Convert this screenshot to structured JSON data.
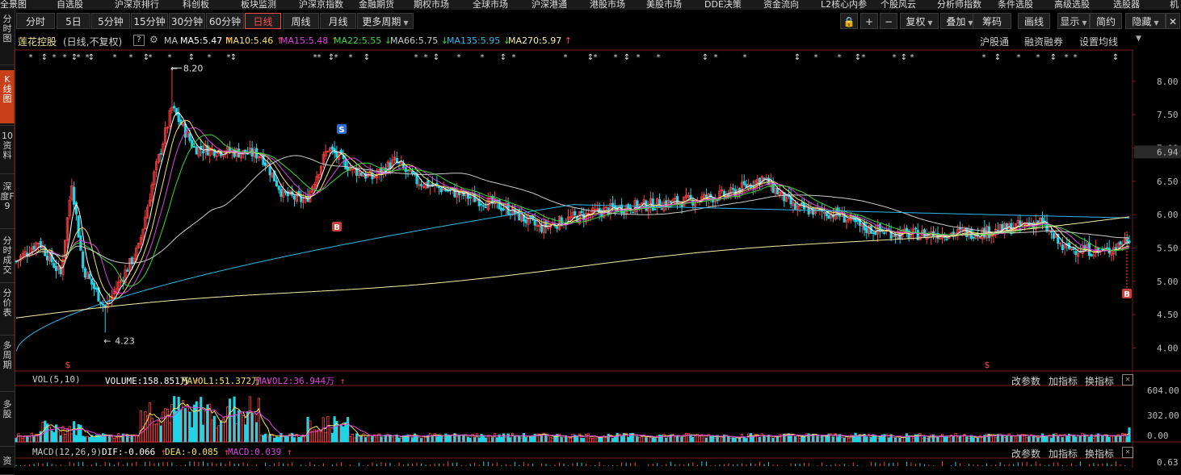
{
  "top_menu": [
    "全景图",
    "自选股",
    "沪深京排行",
    "科创板",
    "板块监测",
    "沪深京指数",
    "金融期货",
    "期权市场",
    "全球市场",
    "沪深港通",
    "港股市场",
    "美股市场",
    "DDE决策",
    "资金流向",
    "L2核心内参",
    "个股风云",
    "分析师指数",
    "条件选股",
    "高级选股",
    "选股器",
    "机"
  ],
  "left_tabs": [
    "分时图",
    "K线图",
    "10资料",
    "深度F9",
    "分时成交",
    "分价表",
    "多周期",
    "多股",
    "资"
  ],
  "toolbar": {
    "periods": [
      "分时",
      "5日",
      "5分钟",
      "15分钟",
      "30分钟",
      "60分钟",
      "日线",
      "周线",
      "月线",
      "更多周期"
    ],
    "active_period": "日线",
    "tools": [
      "复权",
      "叠加",
      "筹码",
      "画线",
      "显示",
      "简约",
      "隐藏"
    ]
  },
  "stock": {
    "name": "莲花控股",
    "mode": "(日线,不复权)"
  },
  "ma": {
    "label": "MA",
    "items": [
      {
        "name": "MA5",
        "value": "5.47",
        "dir": "↑",
        "color": "#ffffff"
      },
      {
        "name": "MA10",
        "value": "5.46",
        "dir": "↑",
        "color": "#f5e663"
      },
      {
        "name": "MA15",
        "value": "5.48",
        "dir": "↑",
        "color": "#e040e0"
      },
      {
        "name": "MA22",
        "value": "5.55",
        "dir": "↓",
        "color": "#39d939"
      },
      {
        "name": "MA66",
        "value": "5.75",
        "dir": "↓",
        "color": "#cccccc"
      },
      {
        "name": "MA135",
        "value": "5.95",
        "dir": "↓",
        "color": "#2fb8e8"
      },
      {
        "name": "MA270",
        "value": "5.97",
        "dir": "↑",
        "color": "#f8f0a8"
      }
    ]
  },
  "right_links": [
    "沪股通",
    "融资融券",
    "设置均线"
  ],
  "price_axis": {
    "ticks": [
      "8.00",
      "7.50",
      "7.00",
      "6.50",
      "6.00",
      "5.50",
      "5.00",
      "4.50",
      "4.00"
    ],
    "current": "6.94"
  },
  "annotations": {
    "high": "8.20",
    "low": "4.23",
    "sell_badge": "S",
    "buy_badge": "B",
    "dollar": "$"
  },
  "volume_panel": {
    "label": "VOL(5,10)",
    "items": [
      {
        "name": "VOLUME",
        "value": "158.851万",
        "color": "#ffffff"
      },
      {
        "name": "MAVOL1",
        "value": "51.372万",
        "color": "#f5e663"
      },
      {
        "name": "MAVOL2",
        "value": "36.944万",
        "color": "#e040e0"
      }
    ],
    "arrow": "↑",
    "axis": [
      "604.00",
      "302.00",
      "0.00"
    ]
  },
  "macd_panel": {
    "label": "MACD(12,26,9)",
    "items": [
      {
        "name": "DIF",
        "value": "-0.066",
        "color": "#ffffff"
      },
      {
        "name": "DEA",
        "value": "-0.085",
        "color": "#f5e663"
      },
      {
        "name": "MACD",
        "value": "0.039",
        "color": "#e040e0"
      }
    ],
    "arrow": "↑",
    "axis": [
      "0.63"
    ]
  },
  "panel_buttons": [
    "改参数",
    "加指标",
    "换指标"
  ],
  "chart_data": {
    "type": "candlestick",
    "y_range": [
      3.8,
      8.3
    ],
    "ma_values_last": {
      "MA5": 5.47,
      "MA10": 5.46,
      "MA15": 5.48,
      "MA22": 5.55,
      "MA66": 5.75,
      "MA135": 5.95,
      "MA270": 5.97
    },
    "high": 8.2,
    "low": 4.23,
    "last_price_marker": 6.94,
    "approx_path": [
      [
        0,
        5.3
      ],
      [
        10,
        5.6
      ],
      [
        20,
        5.1
      ],
      [
        25,
        6.5
      ],
      [
        30,
        5.2
      ],
      [
        40,
        4.6
      ],
      [
        50,
        5.2
      ],
      [
        55,
        5.5
      ],
      [
        62,
        6.6
      ],
      [
        70,
        7.6
      ],
      [
        80,
        7.0
      ],
      [
        95,
        6.95
      ],
      [
        110,
        6.9
      ],
      [
        120,
        6.3
      ],
      [
        130,
        6.2
      ],
      [
        140,
        7.0
      ],
      [
        150,
        6.7
      ],
      [
        160,
        6.55
      ],
      [
        170,
        6.8
      ],
      [
        180,
        6.5
      ],
      [
        200,
        6.3
      ],
      [
        220,
        6.1
      ],
      [
        235,
        5.8
      ],
      [
        250,
        5.95
      ],
      [
        270,
        6.1
      ],
      [
        300,
        6.2
      ],
      [
        320,
        6.3
      ],
      [
        335,
        6.55
      ],
      [
        350,
        6.1
      ],
      [
        370,
        6.0
      ],
      [
        380,
        5.8
      ],
      [
        400,
        5.7
      ],
      [
        420,
        5.72
      ],
      [
        440,
        5.75
      ],
      [
        460,
        5.9
      ],
      [
        470,
        5.5
      ],
      [
        490,
        5.45
      ],
      [
        500,
        5.65
      ]
    ]
  }
}
